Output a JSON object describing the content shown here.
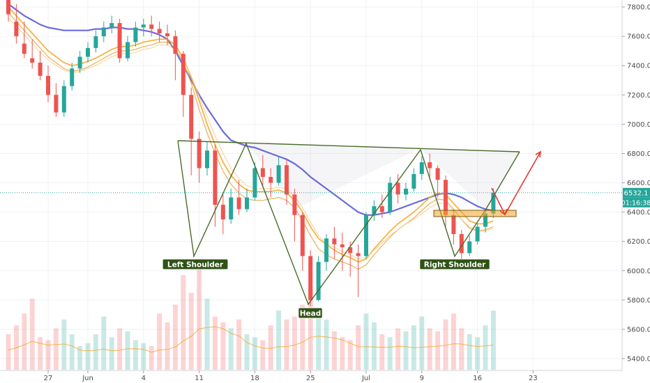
{
  "chart_data": {
    "type": "candlestick",
    "symbol_pair": "",
    "x_axis": {
      "tick_labels": [
        "27",
        "Jun",
        "4",
        "11",
        "18",
        "25",
        "Jul",
        "9",
        "16",
        "23"
      ],
      "tick_index": [
        5,
        10,
        17,
        24,
        31,
        38,
        45,
        52,
        59,
        66
      ]
    },
    "y_axis": {
      "range": [
        5300,
        7850
      ],
      "ticks": [
        5400,
        5600,
        5800,
        6000,
        6200,
        6400,
        6600,
        6800,
        7000,
        7200,
        7400,
        7600,
        7800
      ],
      "tick_labels": [
        "5400.0",
        "5600.0",
        "5800.0",
        "6000.0",
        "6200.0",
        "6400.0",
        "6600.0",
        "6800.0",
        "7000.0",
        "7200.0",
        "7400.0",
        "7600.0",
        "7800.0"
      ]
    },
    "price_label": {
      "value": "6532.1",
      "color": "#26a69a"
    },
    "countdown_label": {
      "value": "01:16:38",
      "color": "#26a69a"
    },
    "candles": [
      [
        7900,
        7980,
        7750,
        7700
      ],
      [
        7700,
        7820,
        7600,
        7550
      ],
      [
        7550,
        7700,
        7480,
        7450
      ],
      [
        7450,
        7580,
        7420,
        7380
      ],
      [
        7420,
        7500,
        7330,
        7300
      ],
      [
        7330,
        7400,
        7200,
        7150
      ],
      [
        7200,
        7280,
        7080,
        7050
      ],
      [
        7080,
        7300,
        7260,
        7050
      ],
      [
        7260,
        7420,
        7380,
        7230
      ],
      [
        7380,
        7500,
        7460,
        7350
      ],
      [
        7460,
        7560,
        7520,
        7420
      ],
      [
        7520,
        7640,
        7600,
        7490
      ],
      [
        7600,
        7700,
        7660,
        7560
      ],
      [
        7660,
        7740,
        7690,
        7620
      ],
      [
        7690,
        7720,
        7450,
        7420
      ],
      [
        7450,
        7600,
        7560,
        7430
      ],
      [
        7560,
        7700,
        7660,
        7530
      ],
      [
        7660,
        7720,
        7680,
        7600
      ],
      [
        7680,
        7740,
        7650,
        7600
      ],
      [
        7650,
        7700,
        7620,
        7560
      ],
      [
        7620,
        7680,
        7600,
        7540
      ],
      [
        7600,
        7640,
        7480,
        7300
      ],
      [
        7480,
        7500,
        7200,
        7050
      ],
      [
        7200,
        7250,
        6900,
        6650
      ],
      [
        6900,
        6950,
        6700,
        6600
      ],
      [
        6700,
        6880,
        6820,
        6650
      ],
      [
        6820,
        6860,
        6450,
        6300
      ],
      [
        6450,
        6520,
        6350,
        6250
      ],
      [
        6350,
        6560,
        6500,
        6320
      ],
      [
        6500,
        6620,
        6420,
        6380
      ],
      [
        6420,
        6560,
        6500,
        6400
      ],
      [
        6500,
        6740,
        6700,
        6480
      ],
      [
        6700,
        6790,
        6640,
        6580
      ],
      [
        6640,
        6700,
        6600,
        6500
      ],
      [
        6600,
        6780,
        6720,
        6580
      ],
      [
        6720,
        6760,
        6520,
        6450
      ],
      [
        6520,
        6560,
        6380,
        6200
      ],
      [
        6380,
        6400,
        6100,
        6000
      ],
      [
        6100,
        6140,
        5800,
        5760
      ],
      [
        5800,
        6100,
        6060,
        5790
      ],
      [
        6060,
        6250,
        6220,
        6000
      ],
      [
        6220,
        6300,
        6180,
        6080
      ],
      [
        6180,
        6260,
        6160,
        6000
      ],
      [
        6160,
        6200,
        6120,
        5960
      ],
      [
        6120,
        6180,
        6100,
        5820
      ],
      [
        6100,
        6400,
        6380,
        6080
      ],
      [
        6380,
        6480,
        6440,
        6340
      ],
      [
        6440,
        6520,
        6400,
        6360
      ],
      [
        6400,
        6640,
        6600,
        6380
      ],
      [
        6600,
        6660,
        6520,
        6460
      ],
      [
        6520,
        6600,
        6560,
        6480
      ],
      [
        6560,
        6700,
        6660,
        6540
      ],
      [
        6660,
        6780,
        6740,
        6620
      ],
      [
        6740,
        6800,
        6700,
        6620
      ],
      [
        6700,
        6720,
        6620,
        6500
      ],
      [
        6620,
        6650,
        6380,
        6300
      ],
      [
        6380,
        6420,
        6250,
        6180
      ],
      [
        6250,
        6280,
        6120,
        6080
      ],
      [
        6120,
        6240,
        6200,
        6100
      ],
      [
        6200,
        6320,
        6300,
        6180
      ],
      [
        6300,
        6420,
        6390,
        6260
      ],
      [
        6390,
        6560,
        6532,
        6360
      ]
    ],
    "moving_averages": [
      {
        "color": "#5b5bd6",
        "values": [
          7820,
          7780,
          7740,
          7710,
          7680,
          7660,
          7650,
          7640,
          7640,
          7640,
          7640,
          7650,
          7650,
          7660,
          7660,
          7650,
          7650,
          7640,
          7630,
          7610,
          7580,
          7500,
          7400,
          7300,
          7200,
          7110,
          7030,
          6950,
          6890,
          6870,
          6850,
          6840,
          6820,
          6800,
          6780,
          6760,
          6730,
          6690,
          6640,
          6600,
          6560,
          6520,
          6480,
          6440,
          6400,
          6380,
          6380,
          6390,
          6400,
          6420,
          6440,
          6460,
          6480,
          6500,
          6520,
          6530,
          6520,
          6500,
          6470,
          6440,
          6420,
          6410
        ]
      },
      {
        "color": "#f5a623",
        "values": [
          7800,
          7740,
          7680,
          7620,
          7560,
          7500,
          7460,
          7420,
          7400,
          7410,
          7430,
          7450,
          7480,
          7510,
          7530,
          7530,
          7540,
          7560,
          7570,
          7580,
          7580,
          7540,
          7450,
          7320,
          7160,
          7000,
          6860,
          6740,
          6650,
          6590,
          6550,
          6540,
          6540,
          6540,
          6550,
          6530,
          6480,
          6400,
          6300,
          6220,
          6180,
          6140,
          6110,
          6090,
          6060,
          6080,
          6150,
          6210,
          6270,
          6320,
          6360,
          6400,
          6450,
          6500,
          6530,
          6520,
          6460,
          6400,
          6340,
          6320,
          6320,
          6340
        ]
      },
      {
        "color": "#e6a23c",
        "values": [
          7760,
          7700,
          7640,
          7580,
          7520,
          7460,
          7420,
          7380,
          7360,
          7370,
          7390,
          7420,
          7450,
          7480,
          7500,
          7500,
          7510,
          7530,
          7540,
          7560,
          7560,
          7520,
          7420,
          7280,
          7100,
          6940,
          6800,
          6680,
          6590,
          6530,
          6490,
          6480,
          6480,
          6490,
          6500,
          6480,
          6430,
          6340,
          6240,
          6150,
          6110,
          6080,
          6060,
          6040,
          6010,
          6040,
          6110,
          6170,
          6230,
          6280,
          6320,
          6360,
          6410,
          6460,
          6490,
          6480,
          6420,
          6350,
          6290,
          6270,
          6280,
          6300
        ]
      },
      {
        "color": "#f9c880",
        "values": [
          7720,
          7670,
          7610,
          7550,
          7490,
          7440,
          7400,
          7370,
          7350,
          7360,
          7380,
          7400,
          7430,
          7460,
          7480,
          7480,
          7490,
          7510,
          7520,
          7540,
          7540,
          7510,
          7440,
          7330,
          7190,
          7050,
          6920,
          6800,
          6700,
          6630,
          6580,
          6560,
          6560,
          6560,
          6570,
          6560,
          6510,
          6430,
          6330,
          6240,
          6190,
          6160,
          6130,
          6110,
          6080,
          6090,
          6140,
          6190,
          6240,
          6280,
          6320,
          6350,
          6390,
          6430,
          6460,
          6460,
          6410,
          6350,
          6300,
          6270,
          6270,
          6290
        ]
      }
    ],
    "volume": [
      60,
      75,
      95,
      120,
      55,
      50,
      70,
      85,
      60,
      40,
      45,
      60,
      90,
      55,
      70,
      65,
      50,
      45,
      40,
      95,
      80,
      110,
      160,
      130,
      180,
      120,
      90,
      80,
      70,
      85,
      60,
      55,
      50,
      75,
      100,
      85,
      90,
      110,
      140,
      95,
      85,
      65,
      55,
      50,
      75,
      95,
      80,
      60,
      55,
      70,
      65,
      75,
      90,
      70,
      65,
      85,
      95,
      70,
      60,
      55,
      75,
      100
    ],
    "volume_avg_color": "#f5a623",
    "annotations": [
      {
        "label": "Left Shoulder"
      },
      {
        "label": "Head"
      },
      {
        "label": "Right Shoulder"
      }
    ]
  }
}
